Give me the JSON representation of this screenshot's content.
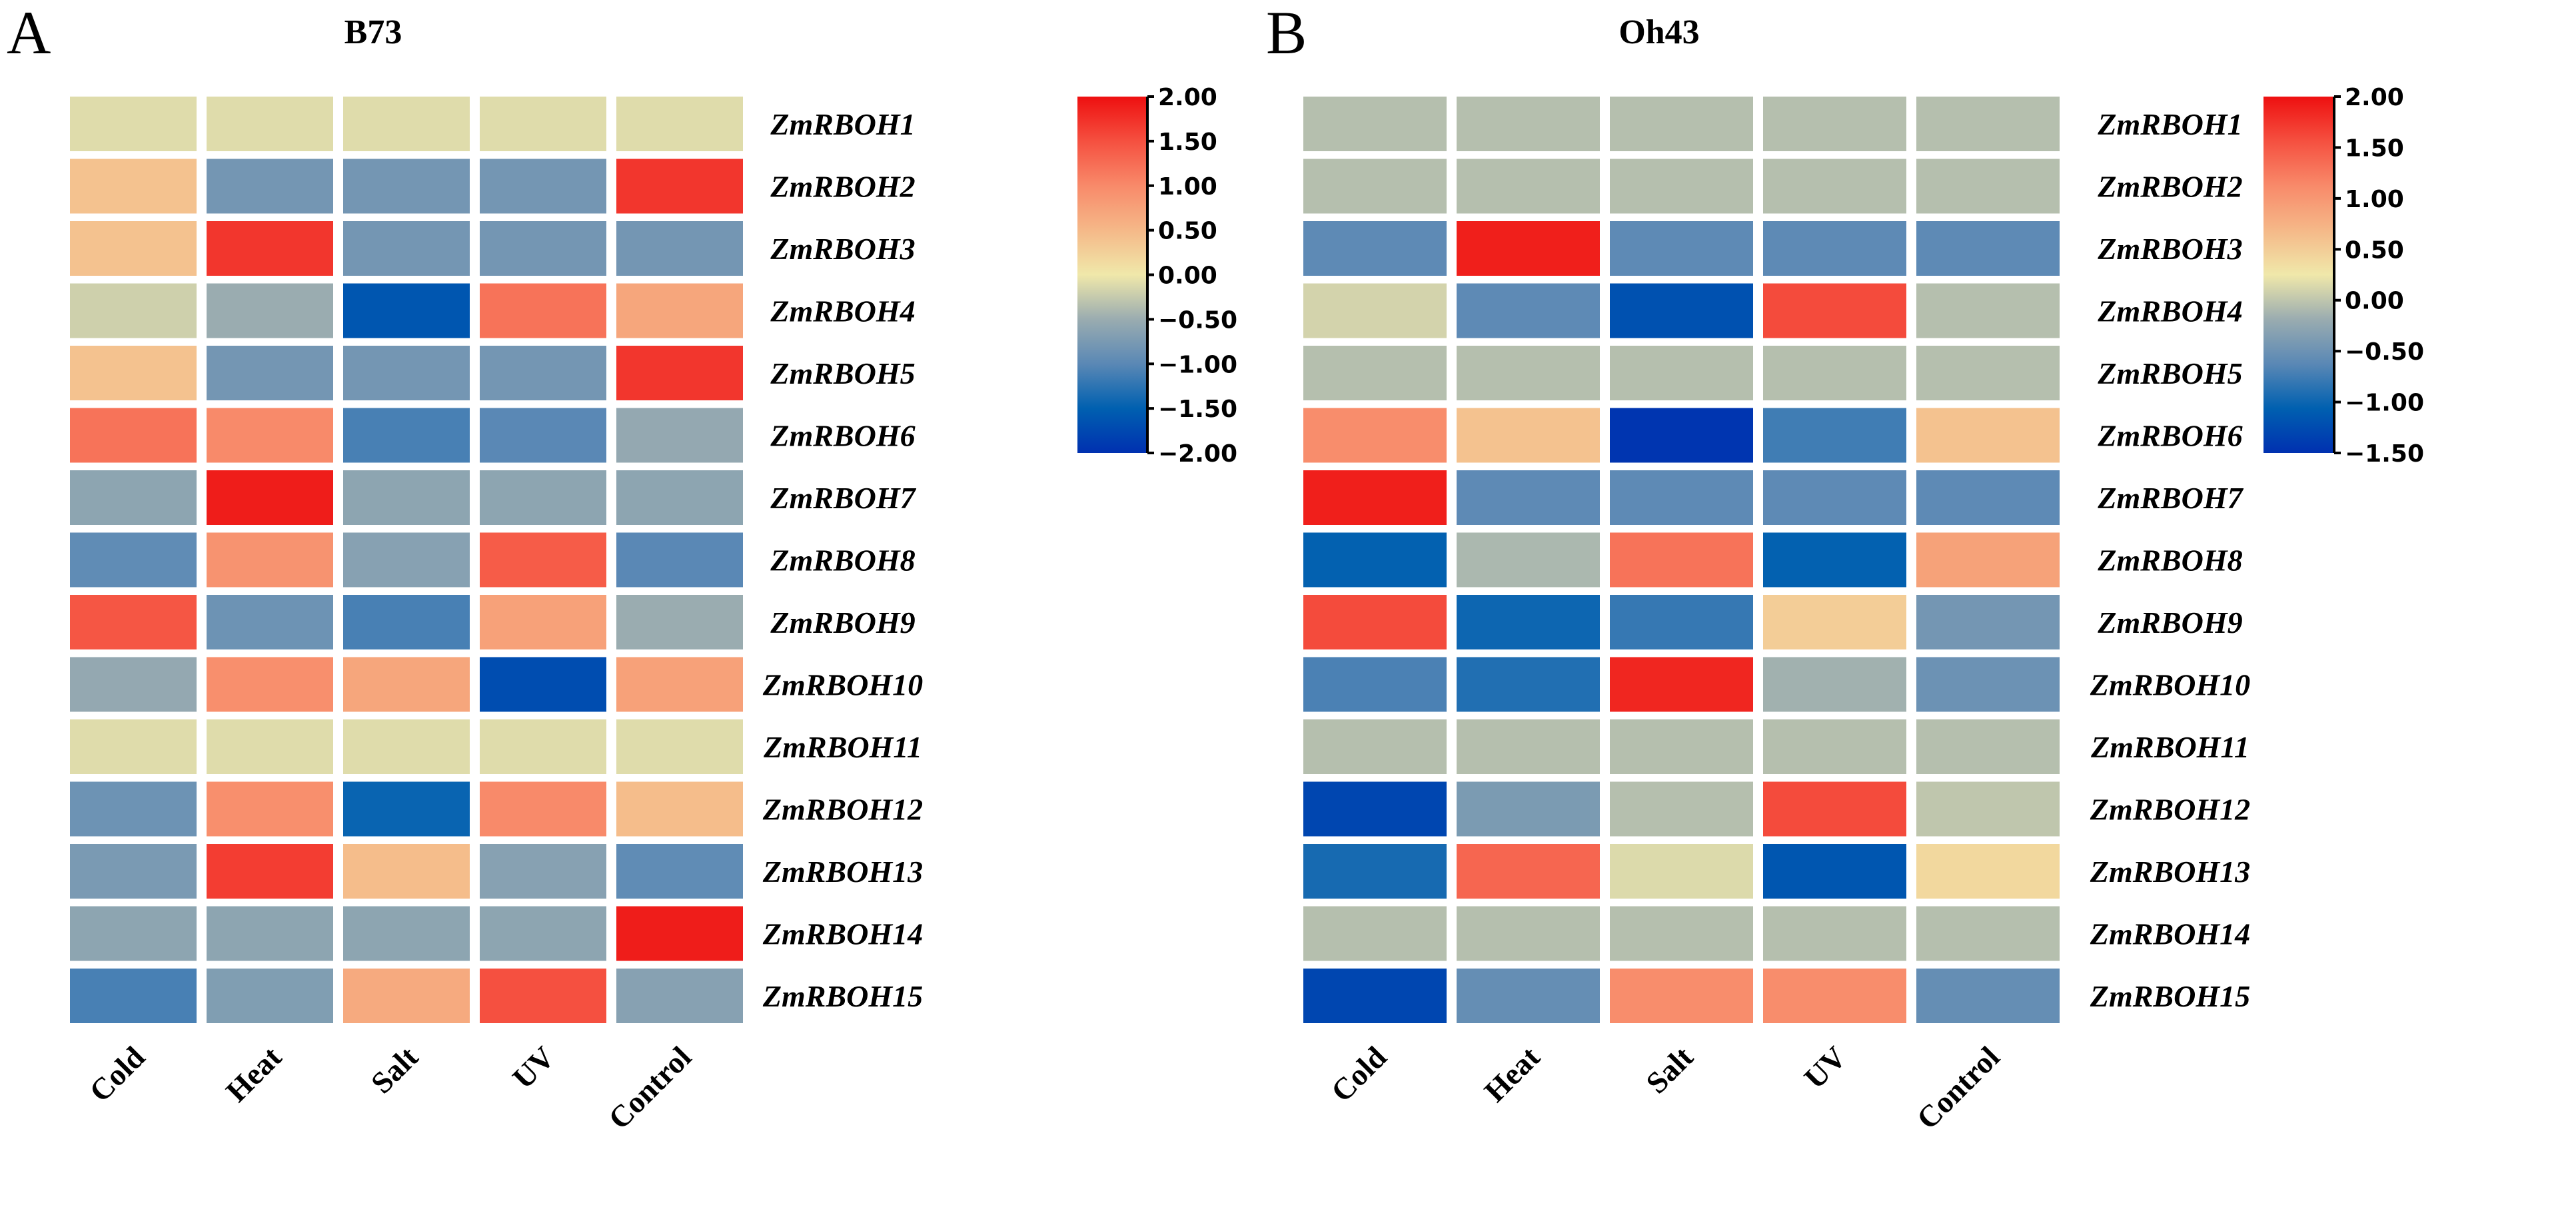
{
  "chart_data": [
    {
      "type": "heatmap",
      "panel_label": "A",
      "title": "B73",
      "columns": [
        "Cold",
        "Heat",
        "Salt",
        "UV",
        "Control"
      ],
      "rows": [
        "ZmRBOH1",
        "ZmRBOH2",
        "ZmRBOH3",
        "ZmRBOH4",
        "ZmRBOH5",
        "ZmRBOH6",
        "ZmRBOH7",
        "ZmRBOH8",
        "ZmRBOH9",
        "ZmRBOH10",
        "ZmRBOH11",
        "ZmRBOH12",
        "ZmRBOH13",
        "ZmRBOH14",
        "ZmRBOH15"
      ],
      "values": [
        [
          -0.1,
          -0.1,
          -0.1,
          -0.1,
          -0.1
        ],
        [
          0.4,
          -0.8,
          -0.8,
          -0.8,
          1.7
        ],
        [
          0.4,
          1.7,
          -0.8,
          -0.8,
          -0.8
        ],
        [
          -0.2,
          -0.5,
          -1.6,
          1.2,
          0.7
        ],
        [
          0.4,
          -0.8,
          -0.8,
          -0.8,
          1.7
        ],
        [
          1.2,
          1.0,
          -1.1,
          -1.0,
          -0.55
        ],
        [
          -0.6,
          1.9,
          -0.6,
          -0.6,
          -0.6
        ],
        [
          -0.95,
          0.9,
          -0.65,
          1.4,
          -1.0
        ],
        [
          1.45,
          -0.85,
          -1.1,
          0.75,
          -0.5
        ],
        [
          -0.55,
          0.95,
          0.7,
          -1.7,
          0.75
        ],
        [
          -0.1,
          -0.1,
          -0.1,
          -0.1,
          -0.1
        ],
        [
          -0.85,
          0.95,
          -1.45,
          1.0,
          0.45
        ],
        [
          -0.75,
          1.65,
          0.45,
          -0.65,
          -0.95
        ],
        [
          -0.6,
          -0.6,
          -0.6,
          -0.6,
          1.9
        ],
        [
          -1.1,
          -0.7,
          0.65,
          1.5,
          -0.65
        ]
      ],
      "colorbar": {
        "range": [
          -2.0,
          2.0
        ],
        "ticks": [
          "2.00",
          "1.50",
          "1.00",
          "0.50",
          "0.00",
          "-0.50",
          "-1.00",
          "-1.50",
          "-2.00"
        ]
      }
    },
    {
      "type": "heatmap",
      "panel_label": "B",
      "title": "Oh43",
      "columns": [
        "Cold",
        "Heat",
        "Salt",
        "UV",
        "Control"
      ],
      "rows": [
        "ZmRBOH1",
        "ZmRBOH2",
        "ZmRBOH3",
        "ZmRBOH4",
        "ZmRBOH5",
        "ZmRBOH6",
        "ZmRBOH7",
        "ZmRBOH8",
        "ZmRBOH9",
        "ZmRBOH10",
        "ZmRBOH11",
        "ZmRBOH12",
        "ZmRBOH13",
        "ZmRBOH14",
        "ZmRBOH15"
      ],
      "values": [
        [
          -0.05,
          -0.05,
          -0.05,
          -0.05,
          -0.05
        ],
        [
          -0.05,
          -0.05,
          -0.05,
          -0.05,
          -0.05
        ],
        [
          -0.6,
          1.9,
          -0.6,
          -0.6,
          -0.6
        ],
        [
          0.1,
          -0.6,
          -1.2,
          1.6,
          -0.05
        ],
        [
          -0.05,
          -0.05,
          -0.05,
          -0.05,
          -0.05
        ],
        [
          1.1,
          0.6,
          -1.45,
          -0.75,
          0.6
        ],
        [
          1.9,
          -0.6,
          -0.6,
          -0.6,
          -0.6
        ],
        [
          -1.05,
          -0.1,
          1.3,
          -1.05,
          0.9
        ],
        [
          1.6,
          -1.0,
          -0.8,
          0.5,
          -0.45
        ],
        [
          -0.7,
          -0.9,
          1.85,
          -0.15,
          -0.5
        ],
        [
          -0.05,
          -0.05,
          -0.05,
          -0.05,
          -0.05
        ],
        [
          -1.3,
          -0.4,
          -0.05,
          1.6,
          0.0
        ],
        [
          -0.95,
          1.4,
          0.15,
          -1.15,
          0.4
        ],
        [
          -0.05,
          -0.05,
          -0.05,
          -0.05,
          -0.05
        ],
        [
          -1.3,
          -0.55,
          1.1,
          1.1,
          -0.55
        ]
      ],
      "colorbar": {
        "range": [
          -1.5,
          2.0
        ],
        "ticks": [
          "2.00",
          "1.50",
          "1.00",
          "0.50",
          "0.00",
          "-0.50",
          "-1.00",
          "-1.50"
        ]
      }
    }
  ],
  "colormap": [
    "#0030b0",
    "#0060b0",
    "#5a88b5",
    "#9aacb0",
    "#f0e8aa",
    "#f5b888",
    "#f88a6a",
    "#f55040",
    "#ee1010"
  ]
}
